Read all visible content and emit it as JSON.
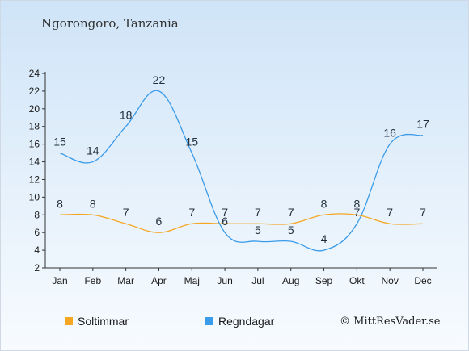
{
  "title": "Ngorongoro, Tanzania",
  "credit": "© MittResVader.se",
  "chart_data": {
    "type": "line",
    "categories": [
      "Jan",
      "Feb",
      "Mar",
      "Apr",
      "Maj",
      "Jun",
      "Jul",
      "Aug",
      "Sep",
      "Okt",
      "Nov",
      "Dec"
    ],
    "ylim": [
      2,
      24
    ],
    "yticks": [
      2,
      4,
      6,
      8,
      10,
      12,
      14,
      16,
      18,
      20,
      22,
      24
    ],
    "series": [
      {
        "name": "Soltimmar",
        "color": "#f5a623",
        "values": [
          8,
          8,
          7,
          6,
          7,
          7,
          7,
          7,
          8,
          8,
          7,
          7
        ]
      },
      {
        "name": "Regndagar",
        "color": "#3a9be8",
        "values": [
          15,
          14,
          18,
          22,
          15,
          6,
          5,
          5,
          4,
          7,
          16,
          17
        ]
      }
    ],
    "legend_position": "bottom"
  }
}
